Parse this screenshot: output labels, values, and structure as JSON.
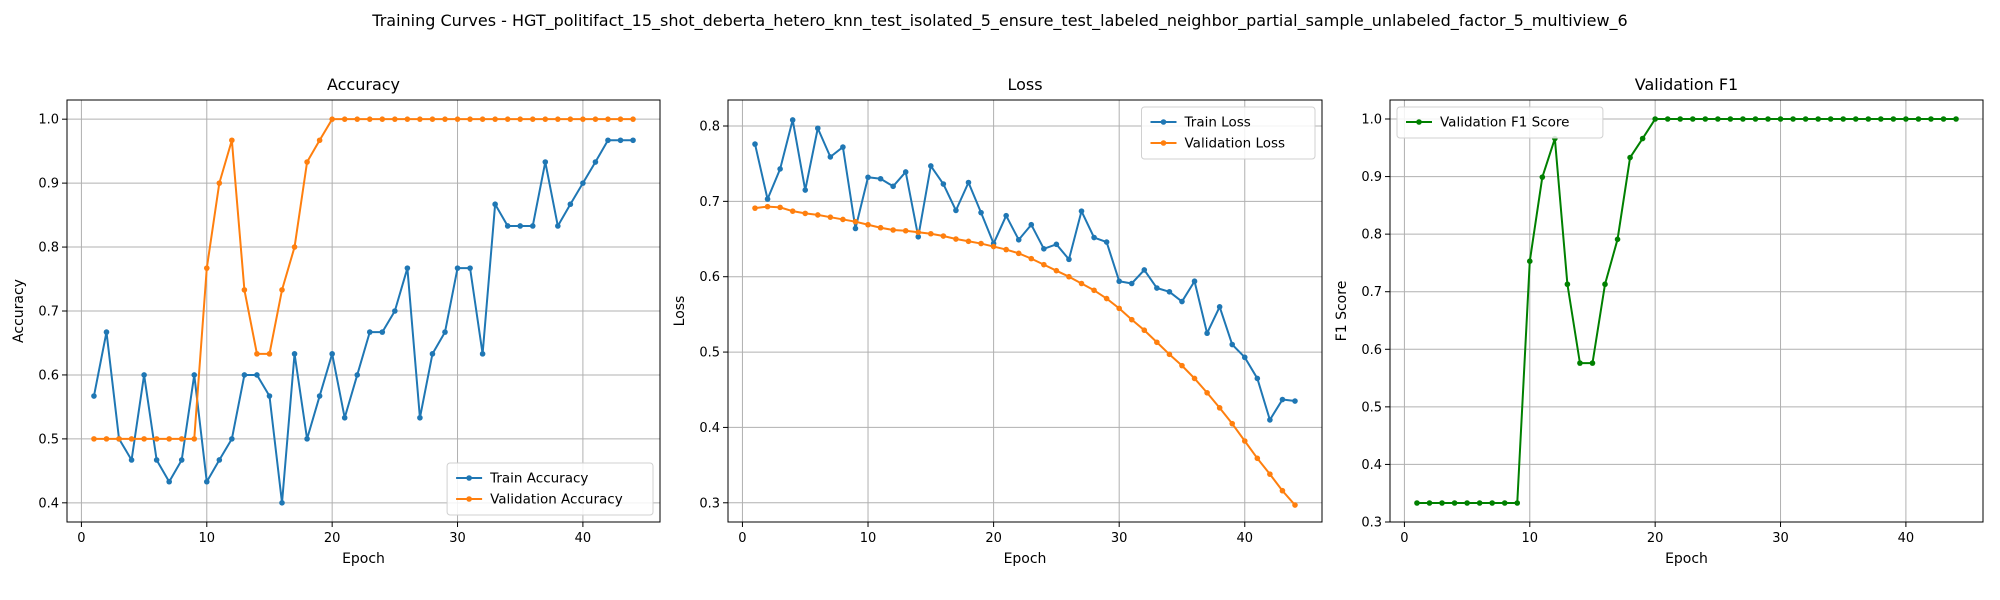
{
  "figure": {
    "suptitle": "Training Curves - HGT_politifact_15_shot_deberta_hetero_knn_test_isolated_5_ensure_test_labeled_neighbor_partial_sample_unlabeled_factor_5_multiview_6"
  },
  "chart_data": [
    {
      "type": "line",
      "title": "Accuracy",
      "xlabel": "Epoch",
      "ylabel": "Accuracy",
      "xlim": [
        -1.15,
        46.15
      ],
      "ylim": [
        0.37,
        1.03
      ],
      "xticks": [
        0,
        10,
        20,
        30,
        40
      ],
      "xtick_labels": [
        "0",
        "10",
        "20",
        "30",
        "40"
      ],
      "yticks": [
        0.4,
        0.5,
        0.6,
        0.7,
        0.8,
        0.9,
        1.0
      ],
      "ytick_labels": [
        "0.4",
        "0.5",
        "0.6",
        "0.7",
        "0.8",
        "0.9",
        "1.0"
      ],
      "grid": true,
      "legend_position": "lower-right",
      "x": [
        1,
        2,
        3,
        4,
        5,
        6,
        7,
        8,
        9,
        10,
        11,
        12,
        13,
        14,
        15,
        16,
        17,
        18,
        19,
        20,
        21,
        22,
        23,
        24,
        25,
        26,
        27,
        28,
        29,
        30,
        31,
        32,
        33,
        34,
        35,
        36,
        37,
        38,
        39,
        40,
        41,
        42,
        43,
        44
      ],
      "series": [
        {
          "name": "Train Accuracy",
          "color": "#1f77b4",
          "values": [
            0.567,
            0.667,
            0.5,
            0.467,
            0.6,
            0.467,
            0.433,
            0.467,
            0.6,
            0.433,
            0.467,
            0.5,
            0.6,
            0.6,
            0.567,
            0.4,
            0.633,
            0.5,
            0.567,
            0.633,
            0.533,
            0.6,
            0.667,
            0.667,
            0.7,
            0.767,
            0.533,
            0.633,
            0.667,
            0.767,
            0.767,
            0.633,
            0.867,
            0.833,
            0.833,
            0.833,
            0.933,
            0.833,
            0.867,
            0.9,
            0.933,
            0.967,
            0.967,
            0.967
          ]
        },
        {
          "name": "Validation Accuracy",
          "color": "#ff7f0e",
          "values": [
            0.5,
            0.5,
            0.5,
            0.5,
            0.5,
            0.5,
            0.5,
            0.5,
            0.5,
            0.767,
            0.9,
            0.967,
            0.733,
            0.633,
            0.633,
            0.733,
            0.8,
            0.933,
            0.967,
            1.0,
            1.0,
            1.0,
            1.0,
            1.0,
            1.0,
            1.0,
            1.0,
            1.0,
            1.0,
            1.0,
            1.0,
            1.0,
            1.0,
            1.0,
            1.0,
            1.0,
            1.0,
            1.0,
            1.0,
            1.0,
            1.0,
            1.0,
            1.0,
            1.0
          ]
        }
      ]
    },
    {
      "type": "line",
      "title": "Loss",
      "xlabel": "Epoch",
      "ylabel": "Loss",
      "xlim": [
        -1.15,
        46.15
      ],
      "ylim": [
        0.2745,
        0.8345
      ],
      "xticks": [
        0,
        10,
        20,
        30,
        40
      ],
      "xtick_labels": [
        "0",
        "10",
        "20",
        "30",
        "40"
      ],
      "yticks": [
        0.3,
        0.4,
        0.5,
        0.6,
        0.7,
        0.8
      ],
      "ytick_labels": [
        "0.3",
        "0.4",
        "0.5",
        "0.6",
        "0.7",
        "0.8"
      ],
      "grid": true,
      "legend_position": "upper-right",
      "x": [
        1,
        2,
        3,
        4,
        5,
        6,
        7,
        8,
        9,
        10,
        11,
        12,
        13,
        14,
        15,
        16,
        17,
        18,
        19,
        20,
        21,
        22,
        23,
        24,
        25,
        26,
        27,
        28,
        29,
        30,
        31,
        32,
        33,
        34,
        35,
        36,
        37,
        38,
        39,
        40,
        41,
        42,
        43,
        44
      ],
      "series": [
        {
          "name": "Train Loss",
          "color": "#1f77b4",
          "values": [
            0.776,
            0.703,
            0.743,
            0.808,
            0.715,
            0.797,
            0.759,
            0.772,
            0.664,
            0.732,
            0.73,
            0.72,
            0.739,
            0.653,
            0.747,
            0.723,
            0.688,
            0.725,
            0.685,
            0.644,
            0.681,
            0.649,
            0.669,
            0.637,
            0.643,
            0.623,
            0.687,
            0.652,
            0.646,
            0.594,
            0.591,
            0.609,
            0.585,
            0.58,
            0.567,
            0.594,
            0.525,
            0.56,
            0.51,
            0.493,
            0.465,
            0.41,
            0.437,
            0.435
          ]
        },
        {
          "name": "Validation Loss",
          "color": "#ff7f0e",
          "values": [
            0.691,
            0.693,
            0.692,
            0.687,
            0.684,
            0.682,
            0.679,
            0.676,
            0.673,
            0.669,
            0.665,
            0.662,
            0.661,
            0.659,
            0.657,
            0.654,
            0.65,
            0.647,
            0.644,
            0.64,
            0.636,
            0.631,
            0.624,
            0.616,
            0.608,
            0.6,
            0.591,
            0.582,
            0.571,
            0.558,
            0.543,
            0.529,
            0.513,
            0.497,
            0.482,
            0.465,
            0.446,
            0.426,
            0.405,
            0.382,
            0.359,
            0.338,
            0.316,
            0.297
          ]
        }
      ]
    },
    {
      "type": "line",
      "title": "Validation F1",
      "xlabel": "Epoch",
      "ylabel": "F1 Score",
      "xlim": [
        -1.15,
        46.15
      ],
      "ylim": [
        0.3,
        1.033
      ],
      "xticks": [
        0,
        10,
        20,
        30,
        40
      ],
      "xtick_labels": [
        "0",
        "10",
        "20",
        "30",
        "40"
      ],
      "yticks": [
        0.3,
        0.4,
        0.5,
        0.6,
        0.7,
        0.8,
        0.9,
        1.0
      ],
      "ytick_labels": [
        "0.3",
        "0.4",
        "0.5",
        "0.6",
        "0.7",
        "0.8",
        "0.9",
        "1.0"
      ],
      "grid": true,
      "legend_position": "upper-left",
      "x": [
        1,
        2,
        3,
        4,
        5,
        6,
        7,
        8,
        9,
        10,
        11,
        12,
        13,
        14,
        15,
        16,
        17,
        18,
        19,
        20,
        21,
        22,
        23,
        24,
        25,
        26,
        27,
        28,
        29,
        30,
        31,
        32,
        33,
        34,
        35,
        36,
        37,
        38,
        39,
        40,
        41,
        42,
        43,
        44
      ],
      "series": [
        {
          "name": "Validation F1 Score",
          "color": "#008000",
          "values": [
            0.333,
            0.333,
            0.333,
            0.333,
            0.333,
            0.333,
            0.333,
            0.333,
            0.333,
            0.753,
            0.899,
            0.966,
            0.713,
            0.576,
            0.576,
            0.713,
            0.791,
            0.933,
            0.966,
            1.0,
            1.0,
            1.0,
            1.0,
            1.0,
            1.0,
            1.0,
            1.0,
            1.0,
            1.0,
            1.0,
            1.0,
            1.0,
            1.0,
            1.0,
            1.0,
            1.0,
            1.0,
            1.0,
            1.0,
            1.0,
            1.0,
            1.0,
            1.0,
            1.0
          ]
        }
      ]
    }
  ]
}
